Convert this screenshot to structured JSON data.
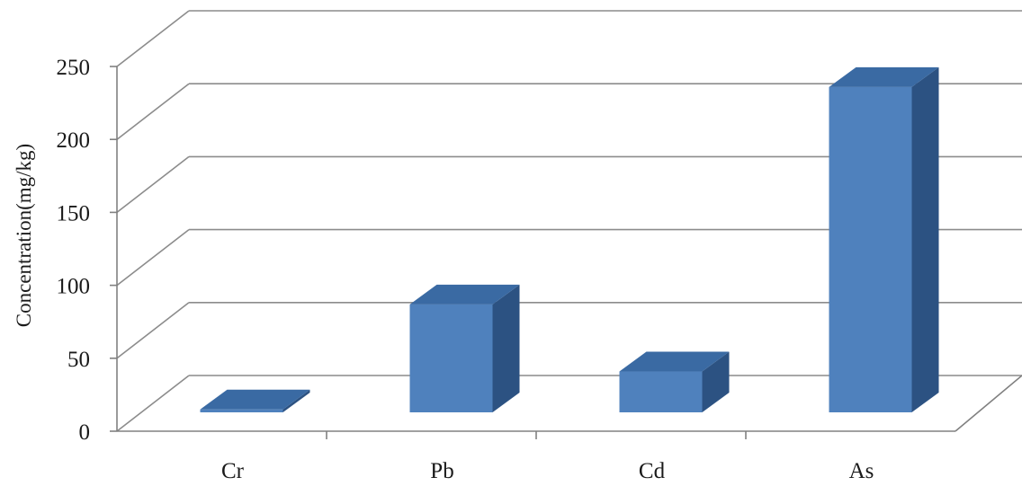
{
  "chart_data": {
    "type": "bar",
    "title": "",
    "xlabel": "",
    "ylabel": "Concentration(mg/kg)",
    "categories": [
      "Cr",
      "Pb",
      "Cd",
      "As"
    ],
    "values": [
      2,
      74,
      28,
      223
    ],
    "ylim": [
      0,
      250
    ],
    "yticks": [
      0,
      50,
      100,
      150,
      200,
      250
    ],
    "ytick_labels": [
      "0",
      "50",
      "100",
      "150",
      "200",
      "250"
    ],
    "grid": true,
    "style": "3d-column",
    "colors": {
      "bar_front": "#4f81bd",
      "bar_top": "#3a6aa3",
      "bar_side": "#2c5282",
      "grid": "#8c8c8c",
      "axis": "#808080"
    }
  }
}
